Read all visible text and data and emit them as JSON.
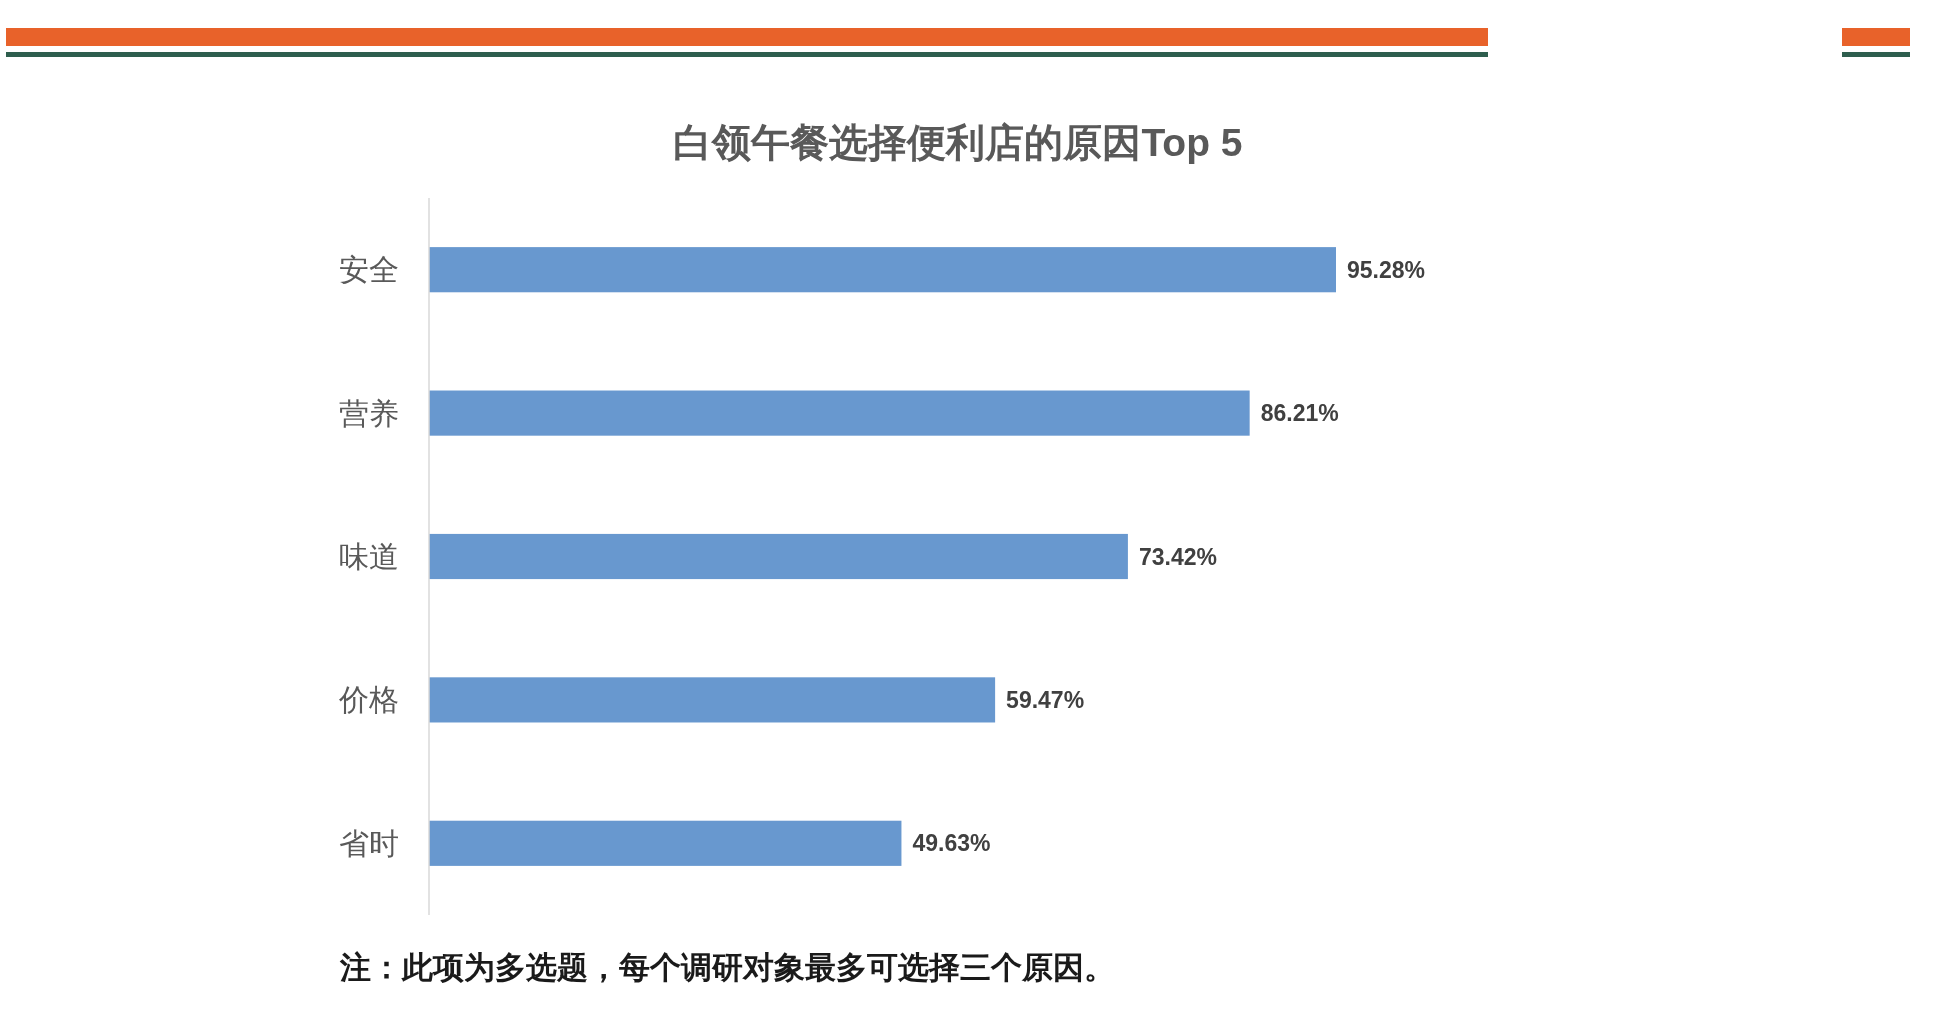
{
  "chart_data": {
    "type": "bar",
    "orientation": "horizontal",
    "title": "白领午餐选择便利店的原因Top 5",
    "categories": [
      "安全",
      "营养",
      "味道",
      "价格",
      "省时"
    ],
    "values": [
      95.28,
      86.21,
      73.42,
      59.47,
      49.63
    ],
    "value_labels": [
      "95.28%",
      "86.21%",
      "73.42%",
      "59.47%",
      "49.63%"
    ],
    "color": "#6898cf",
    "tick_labels": "y",
    "annotations": [
      "注：此项为多选题，每个调研对象最多可选择三个原因。"
    ]
  }
}
